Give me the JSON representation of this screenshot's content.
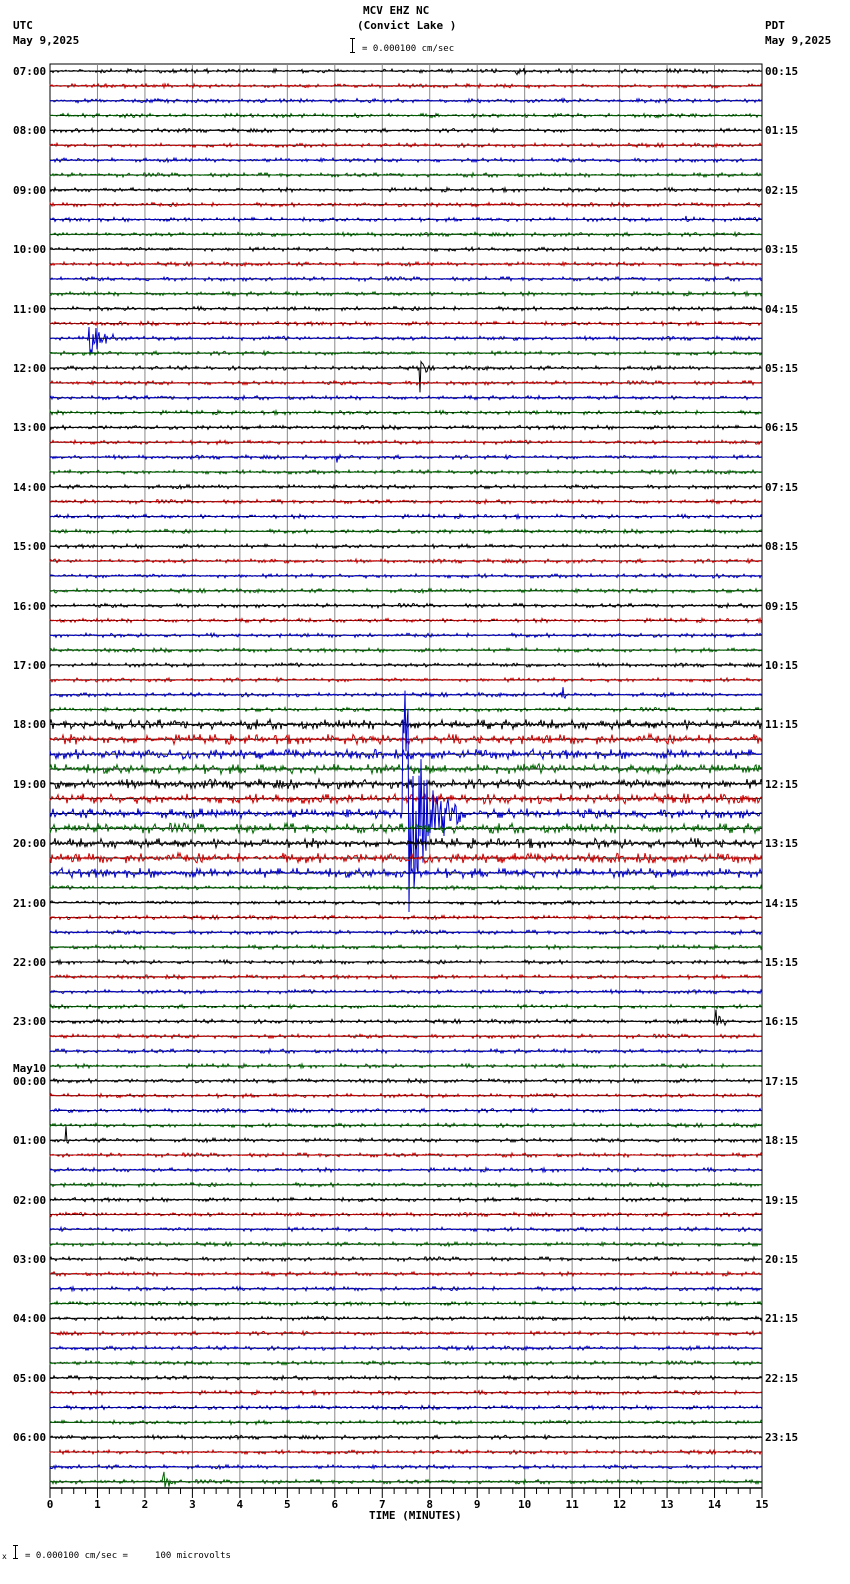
{
  "header": {
    "station": "MCV EHZ NC",
    "location": "(Convict Lake )",
    "left_tz": "UTC",
    "left_date": "May 9,2025",
    "right_tz": "PDT",
    "right_date": "May 9,2025",
    "scale_text": "= 0.000100 cm/sec"
  },
  "footer": {
    "scale_text": "= 0.000100 cm/sec =     100 microvolts",
    "marker": "x"
  },
  "colors": {
    "trace_cycle": [
      "#000000",
      "#cc0000",
      "#0000cc",
      "#006600"
    ],
    "grid": "#888888",
    "axis": "#000000"
  },
  "chart_data": {
    "type": "line",
    "title": "MCV EHZ NC (Convict Lake )",
    "subtitle": "= 0.000100 cm/sec",
    "xlabel": "TIME (MINUTES)",
    "ylabel": "",
    "xlim": [
      0,
      15
    ],
    "x_ticks": [
      "0",
      "1",
      "2",
      "3",
      "4",
      "5",
      "6",
      "7",
      "8",
      "9",
      "10",
      "11",
      "12",
      "13",
      "14",
      "15"
    ],
    "grid": true,
    "traces_per_hour": 4,
    "trace_count": 96,
    "left_labels": [
      {
        "row": 0,
        "text": "07:00"
      },
      {
        "row": 4,
        "text": "08:00"
      },
      {
        "row": 8,
        "text": "09:00"
      },
      {
        "row": 12,
        "text": "10:00"
      },
      {
        "row": 16,
        "text": "11:00"
      },
      {
        "row": 20,
        "text": "12:00"
      },
      {
        "row": 24,
        "text": "13:00"
      },
      {
        "row": 28,
        "text": "14:00"
      },
      {
        "row": 32,
        "text": "15:00"
      },
      {
        "row": 36,
        "text": "16:00"
      },
      {
        "row": 40,
        "text": "17:00"
      },
      {
        "row": 44,
        "text": "18:00"
      },
      {
        "row": 48,
        "text": "19:00"
      },
      {
        "row": 52,
        "text": "20:00"
      },
      {
        "row": 56,
        "text": "21:00"
      },
      {
        "row": 60,
        "text": "22:00"
      },
      {
        "row": 64,
        "text": "23:00"
      },
      {
        "row": 68,
        "text": "00:00",
        "date": "May10"
      },
      {
        "row": 72,
        "text": "01:00"
      },
      {
        "row": 76,
        "text": "02:00"
      },
      {
        "row": 80,
        "text": "03:00"
      },
      {
        "row": 84,
        "text": "04:00"
      },
      {
        "row": 88,
        "text": "05:00"
      },
      {
        "row": 92,
        "text": "06:00"
      }
    ],
    "right_labels": [
      "00:15",
      "01:15",
      "02:15",
      "03:15",
      "04:15",
      "05:15",
      "06:15",
      "07:15",
      "08:15",
      "09:15",
      "10:15",
      "11:15",
      "12:15",
      "13:15",
      "14:15",
      "15:15",
      "16:15",
      "17:15",
      "18:15",
      "19:15",
      "20:15",
      "21:15",
      "22:15",
      "23:15"
    ],
    "noisy_rows": [
      44,
      45,
      46,
      47,
      48,
      49,
      50,
      51,
      52,
      53,
      54
    ],
    "events": [
      {
        "row": 0,
        "minute": 9.8,
        "amp": 2,
        "len": 0.8,
        "note": "small burst"
      },
      {
        "row": 10,
        "minute": 13.4,
        "amp": 3,
        "len": 0.2
      },
      {
        "row": 18,
        "minute": 0.8,
        "amp": 26,
        "len": 0.6,
        "note": "local event green"
      },
      {
        "row": 20,
        "minute": 7.8,
        "amp": 30,
        "len": 0.15,
        "note": "spike black, spans 12:00-13:00"
      },
      {
        "row": 26,
        "minute": 6.05,
        "amp": 4,
        "len": 0.1
      },
      {
        "row": 42,
        "minute": 10.8,
        "amp": 9,
        "len": 0.1
      },
      {
        "row": 50,
        "minute": 7.45,
        "amp": 130,
        "len": 1.2,
        "note": "large earthquake blue, ~18:00-21:30"
      },
      {
        "row": 64,
        "minute": 14.0,
        "amp": 14,
        "len": 0.3,
        "note": "black event 23:00"
      },
      {
        "row": 72,
        "minute": 0.35,
        "amp": 8,
        "len": 0.05
      },
      {
        "row": 95,
        "minute": 2.4,
        "amp": 12,
        "len": 0.2,
        "note": "green event end"
      }
    ]
  }
}
